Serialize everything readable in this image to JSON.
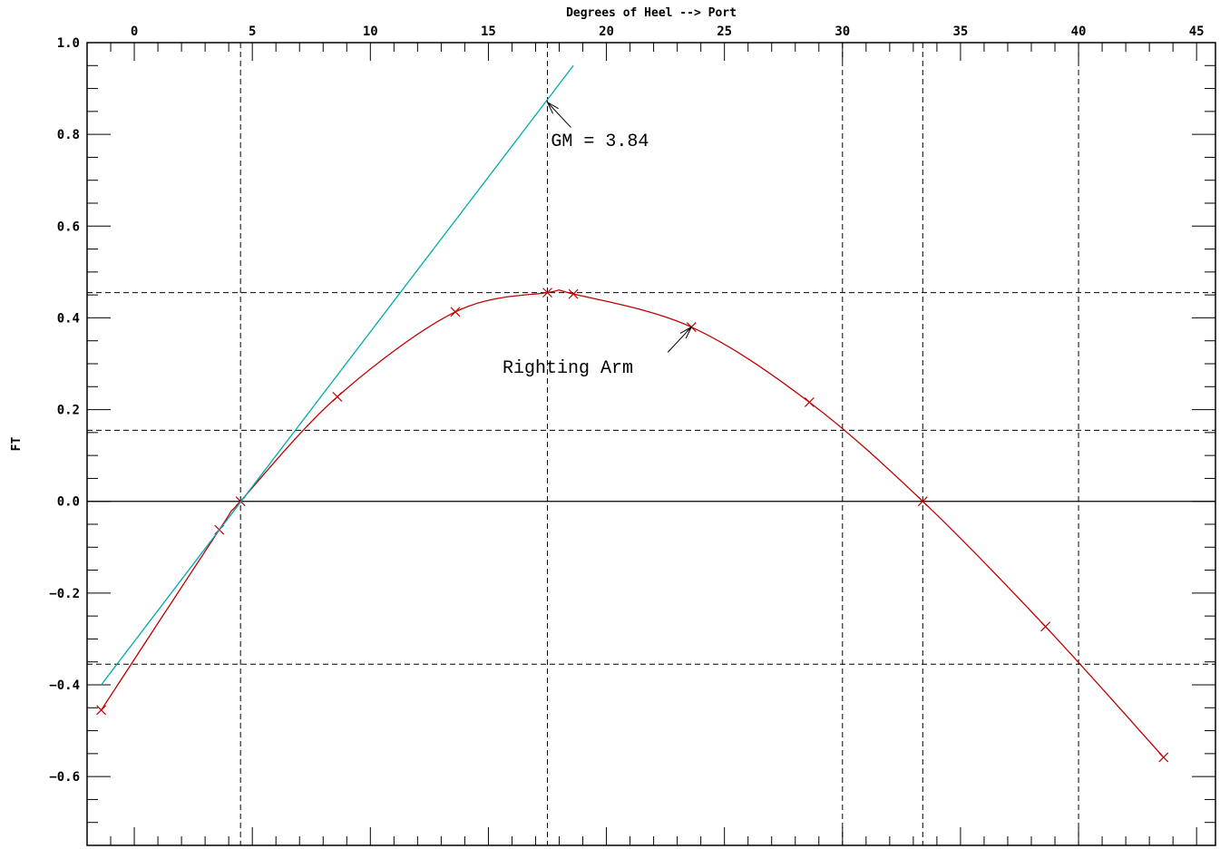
{
  "chart_data": {
    "type": "line",
    "title": "",
    "xlabel": "Degrees of Heel --> Port",
    "ylabel": "FT",
    "xlim": [
      -2,
      45.8
    ],
    "ylim": [
      -0.75,
      1.0
    ],
    "x_ticks": [
      0,
      5,
      10,
      15,
      20,
      25,
      30,
      35,
      40,
      45
    ],
    "y_ticks": [
      1.0,
      0.8,
      0.6,
      0.4,
      0.2,
      0.0,
      -0.2,
      -0.4,
      -0.6
    ],
    "y_tick_labels": [
      "1.0",
      "0.8",
      "0.6",
      "0.4",
      "0.2",
      "0.0",
      "−0.2",
      "−0.4",
      "−0.6"
    ],
    "grid": false,
    "reference_lines": {
      "vertical": [
        4.5,
        17.5,
        30,
        33.4,
        40
      ],
      "horizontal": [
        0.455,
        0.155,
        -0.355
      ],
      "zero_line": 0.0
    },
    "series": [
      {
        "color": "#c00000",
        "points": [
          {
            "x": -1.4,
            "y": -0.455
          },
          {
            "x": 3.6,
            "y": -0.062
          },
          {
            "x": 4.5,
            "y": 0.0
          },
          {
            "x": 8.6,
            "y": 0.228
          },
          {
            "x": 13.6,
            "y": 0.413
          },
          {
            "x": 17.5,
            "y": 0.455
          },
          {
            "x": 18.6,
            "y": 0.452
          },
          {
            "x": 23.6,
            "y": 0.38
          },
          {
            "x": 28.6,
            "y": 0.216
          },
          {
            "x": 33.4,
            "y": 0.0
          },
          {
            "x": 38.6,
            "y": -0.273
          },
          {
            "x": 43.6,
            "y": -0.558
          }
        ]
      },
      {
        "color": "#00aaaa",
        "points": [
          {
            "x": -1.4,
            "y": -0.4
          },
          {
            "x": 18.6,
            "y": 0.95
          }
        ]
      }
    ],
    "annotations": [
      {
        "text": "GM = 3.84",
        "x": 17.65,
        "y": 0.775,
        "arrow_to": {
          "x": 17.5,
          "y": 0.87
        },
        "arrow_from": {
          "x": 18.5,
          "y": 0.815
        }
      },
      {
        "text": "Righting Arm",
        "x": 15.6,
        "y": 0.28,
        "arrow_to": {
          "x": 23.6,
          "y": 0.38
        },
        "arrow_from": {
          "x": 22.6,
          "y": 0.325
        }
      }
    ]
  }
}
